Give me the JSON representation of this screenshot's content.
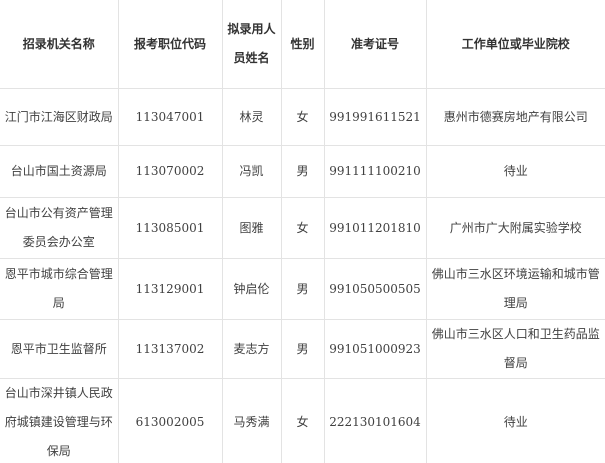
{
  "table": {
    "headers": [
      "招录机关名称",
      "报考职位代码",
      "拟录用人员姓名",
      "性别",
      "准考证号",
      "工作单位或毕业院校"
    ],
    "rows": [
      {
        "agency": "江门市江海区财政局",
        "code": "113047001",
        "name": "林灵",
        "gender": "女",
        "ticket": "991991611521",
        "unit": "惠州市德赛房地产有限公司"
      },
      {
        "agency": "台山市国土资源局",
        "code": "113070002",
        "name": "冯凯",
        "gender": "男",
        "ticket": "991111100210",
        "unit": "待业"
      },
      {
        "agency": "台山市公有资产管理委员会办公室",
        "code": "113085001",
        "name": "图雅",
        "gender": "女",
        "ticket": "991011201810",
        "unit": "广州市广大附属实验学校"
      },
      {
        "agency": "恩平市城市综合管理局",
        "code": "113129001",
        "name": "钟启伦",
        "gender": "男",
        "ticket": "991050500505",
        "unit": "佛山市三水区环境运输和城市管理局"
      },
      {
        "agency": "恩平市卫生监督所",
        "code": "113137002",
        "name": "麦志方",
        "gender": "男",
        "ticket": "991051000923",
        "unit": "佛山市三水区人口和卫生药品监督局"
      },
      {
        "agency": "台山市深井镇人民政府城镇建设管理与环保局",
        "code": "613002005",
        "name": "马秀满",
        "gender": "女",
        "ticket": "222130101604",
        "unit": "待业"
      }
    ],
    "colors": {
      "border": "#e3e3e3",
      "text": "#404040",
      "background": "#ffffff"
    }
  }
}
